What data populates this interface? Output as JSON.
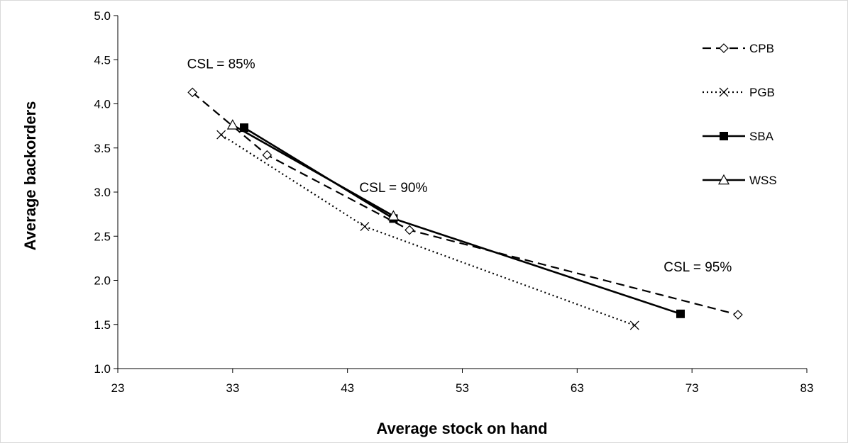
{
  "chart_data": {
    "type": "line",
    "title": "",
    "xlabel": "Average stock on hand",
    "ylabel": "Average backorders",
    "xlim": [
      23,
      83
    ],
    "ylim": [
      1.0,
      5.0
    ],
    "xticks": [
      "23",
      "33",
      "43",
      "53",
      "63",
      "73",
      "83"
    ],
    "yticks": [
      "1.0",
      "1.5",
      "2.0",
      "2.5",
      "3.0",
      "3.5",
      "4.0",
      "4.5",
      "5.0"
    ],
    "grid": false,
    "legend_position": "top-right",
    "series": [
      {
        "name": "CPB",
        "marker": "diamond-open",
        "line": "dashed",
        "color": "#000000",
        "points": [
          [
            29.5,
            4.13
          ],
          [
            36.0,
            3.42
          ],
          [
            48.4,
            2.57
          ],
          [
            77.0,
            1.61
          ]
        ]
      },
      {
        "name": "PGB",
        "marker": "x",
        "line": "dotted",
        "color": "#000000",
        "points": [
          [
            32.0,
            3.65
          ],
          [
            44.5,
            2.61
          ],
          [
            68.0,
            1.49
          ]
        ]
      },
      {
        "name": "SBA",
        "marker": "square-filled",
        "line": "solid",
        "color": "#000000",
        "points": [
          [
            34.0,
            3.73
          ],
          [
            47.0,
            2.7
          ],
          [
            72.0,
            1.62
          ]
        ]
      },
      {
        "name": "WSS",
        "marker": "triangle-open",
        "line": "solid",
        "color": "#000000",
        "points": [
          [
            33.0,
            3.76
          ],
          [
            47.0,
            2.73
          ]
        ]
      }
    ],
    "annotations": [
      {
        "text": "CSL = 85%",
        "x": 32.0,
        "y": 4.4
      },
      {
        "text": "CSL = 90%",
        "x": 47.0,
        "y": 3.0
      },
      {
        "text": "CSL = 95%",
        "x": 73.5,
        "y": 2.1
      }
    ]
  }
}
